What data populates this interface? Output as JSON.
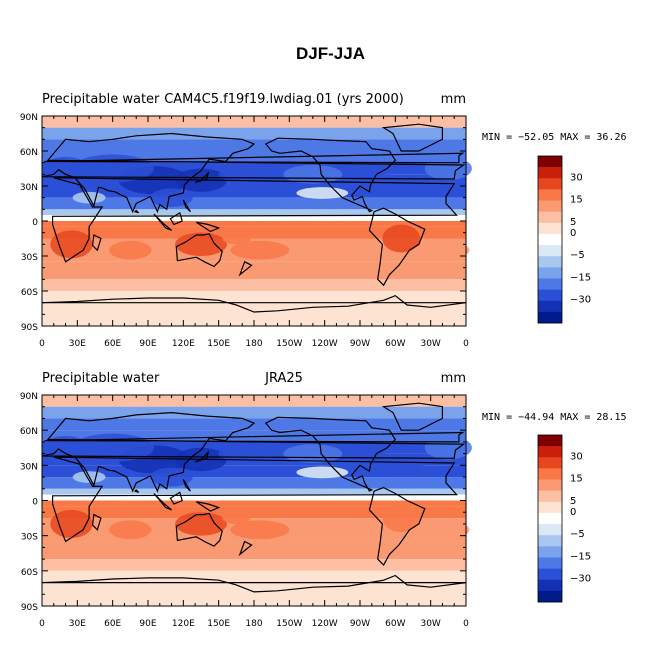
{
  "figure_title": "DJF-JJA",
  "colorbar_labels": [
    "30",
    "15",
    "5",
    "0",
    "−5",
    "−15",
    "−30"
  ],
  "colorbar_colors": [
    "#7f0000",
    "#c8200a",
    "#e8461e",
    "#f87848",
    "#fa9a72",
    "#fcbfa3",
    "#fde4d2",
    "#ffffff",
    "#dbe9f6",
    "#a9c8f0",
    "#7ba3eb",
    "#4d78e6",
    "#2b4fd6",
    "#1430b4",
    "#001a8a"
  ],
  "lat_labels": [
    "90N",
    "60N",
    "30N",
    "0",
    "30S",
    "60S",
    "90S"
  ],
  "lon_labels": [
    "0",
    "30E",
    "60E",
    "90E",
    "120E",
    "150E",
    "180",
    "150W",
    "120W",
    "90W",
    "60W",
    "30W",
    "0"
  ],
  "panels": [
    {
      "left_title": "Precipitable water",
      "center_title": "CAM4C5.f19f19.lwdiag.01 (yrs 2000)",
      "units": "mm",
      "stats": "MIN = −52.05  MAX =  36.26",
      "min": -52.05,
      "max": 36.26
    },
    {
      "left_title": "Precipitable water",
      "center_title": "JRA25",
      "units": "mm",
      "stats": "MIN = −44.94  MAX =  28.15",
      "min": -44.94,
      "max": 28.15
    }
  ]
}
